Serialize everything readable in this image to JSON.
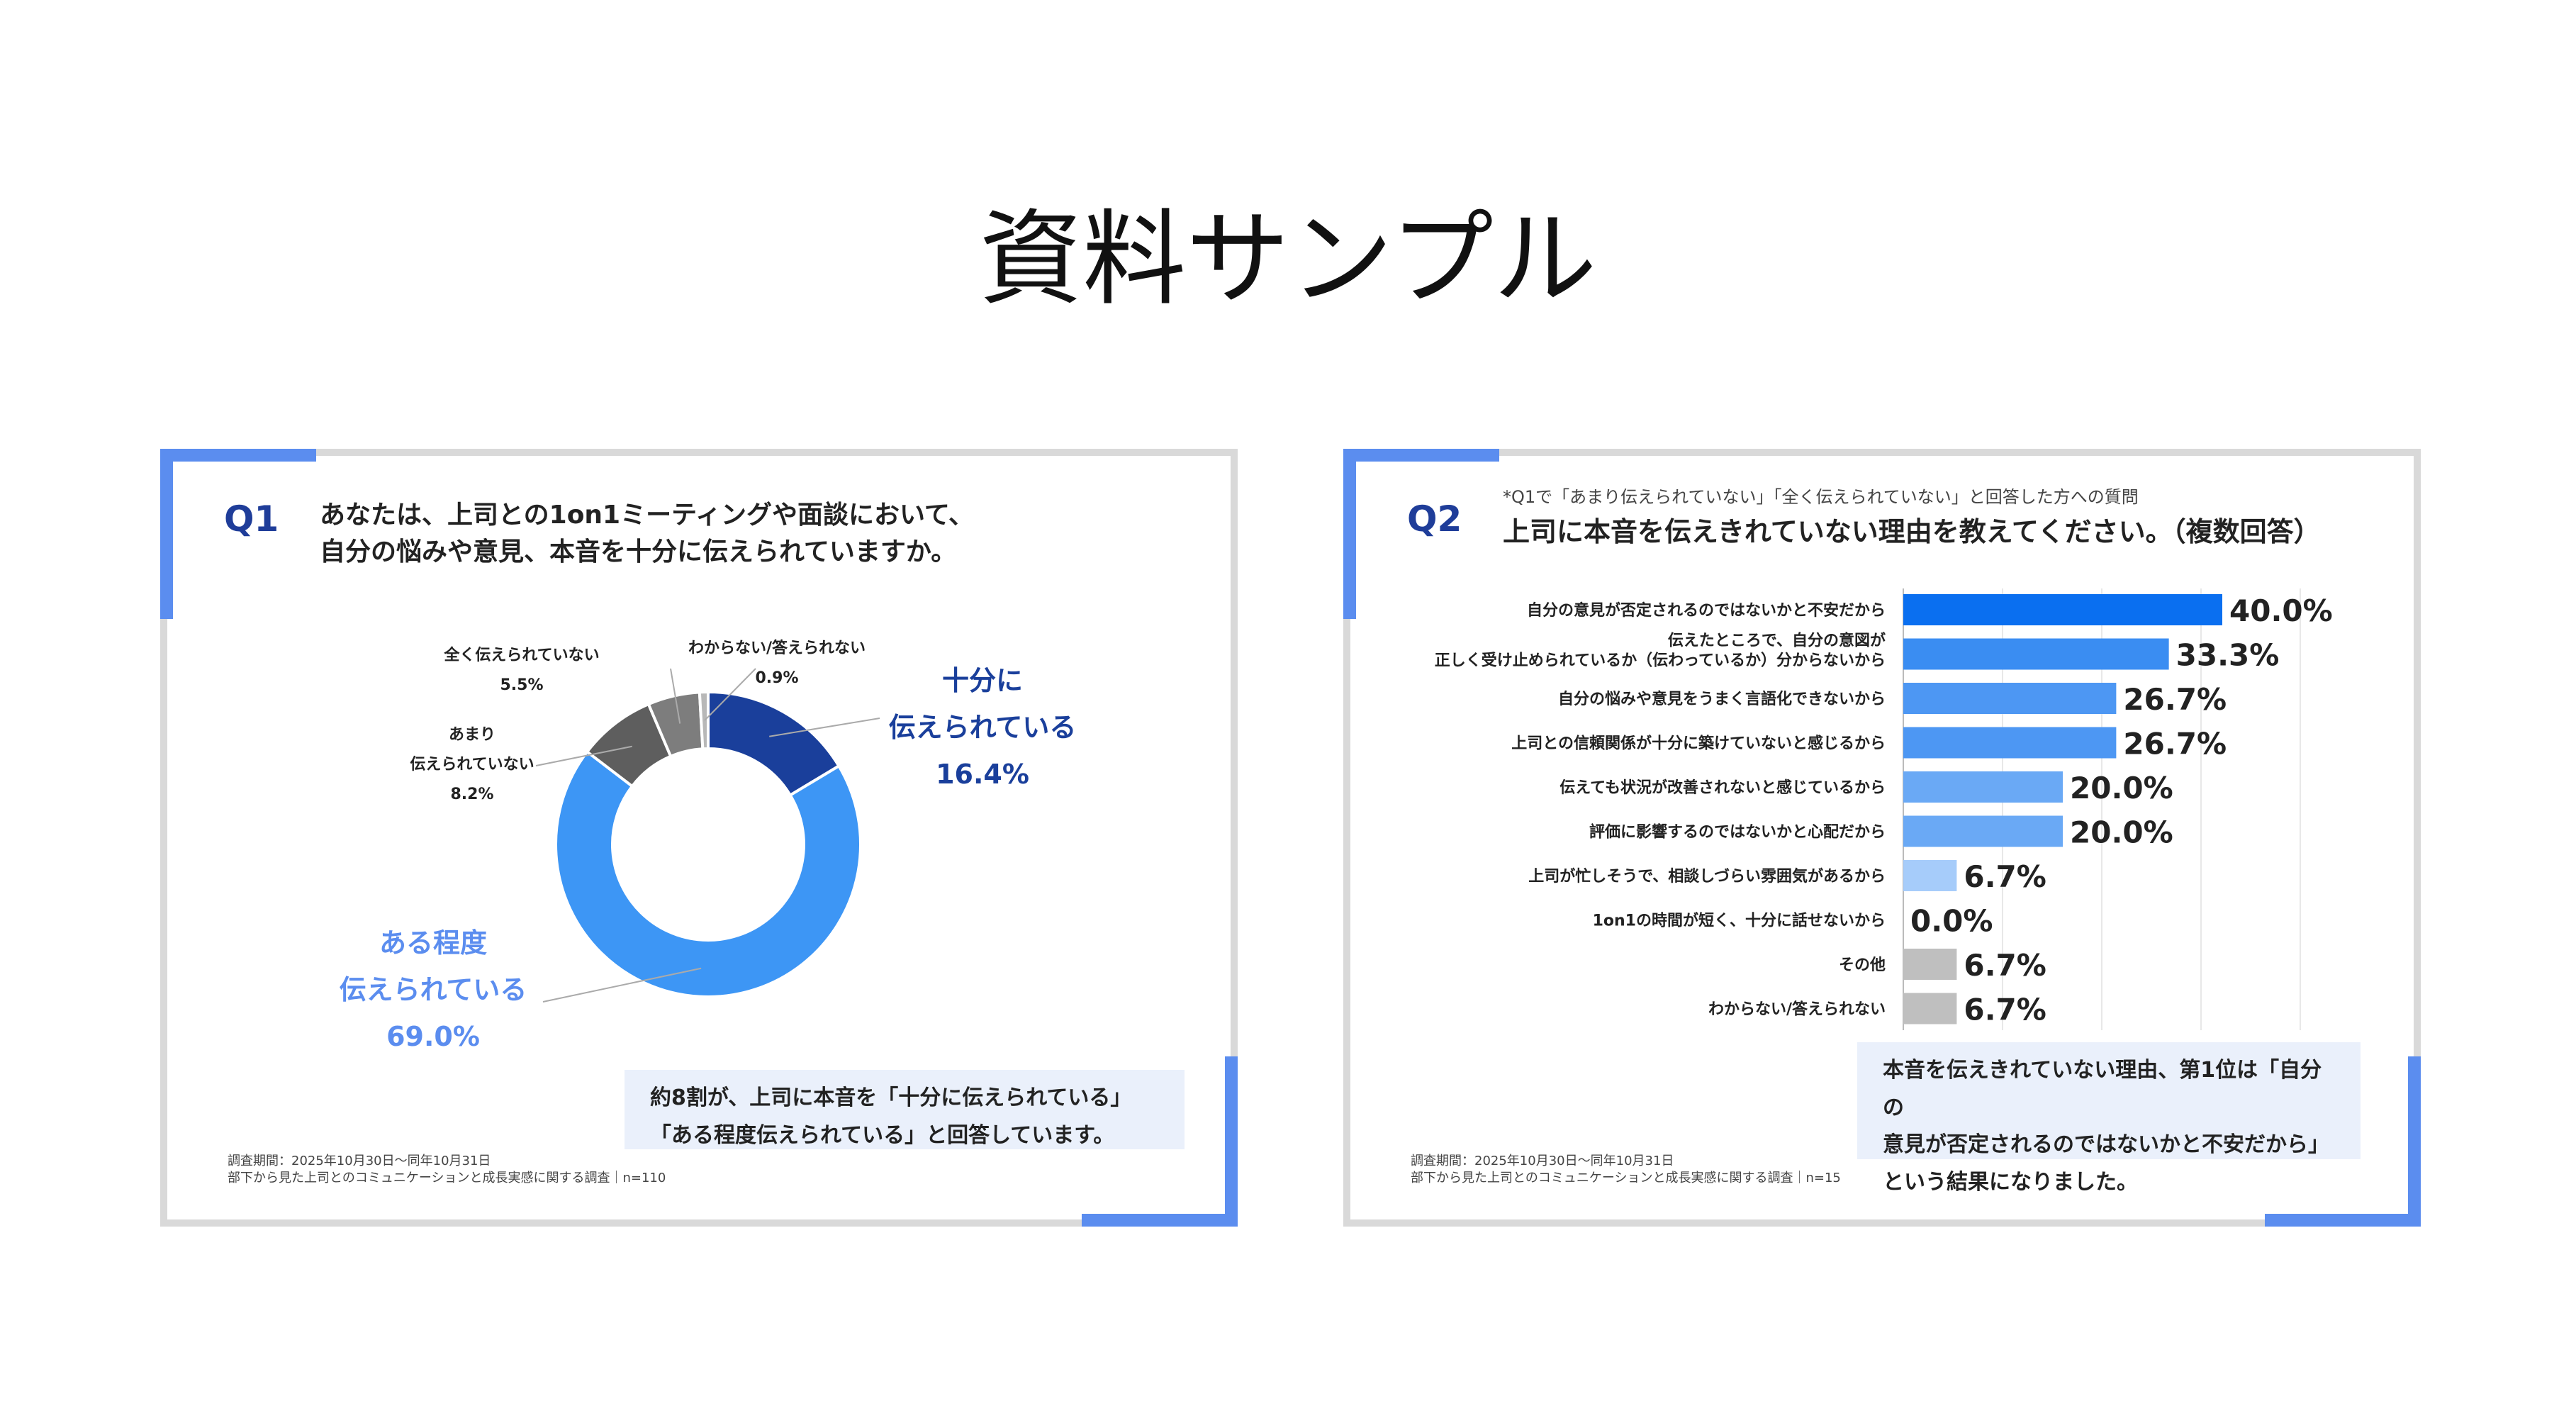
{
  "page": {
    "title": "資料サンプル"
  },
  "q1": {
    "number": "Q1",
    "question_line1": "あなたは、上司との1on1ミーティングや面談において、",
    "question_line2": "自分の悩みや意見、本音を十分に伝えられていますか。",
    "summary": "約8割が、上司に本音を「十分に伝えられている」「ある程度伝えられている」と回答しています。",
    "footnote_line1": "調査期間：2025年10月30日〜同年10月31日",
    "footnote_line2": "部下から見た上司とのコミュニケーションと成長実感に関する調査｜n=110"
  },
  "q2": {
    "number": "Q2",
    "note": "*Q1で「あまり伝えられていない」「全く伝えられていない」と回答した方への質問",
    "question": "上司に本音を伝えきれていない理由を教えてください。（複数回答）",
    "summary_line1": "本音を伝えきれていない理由、第1位は「自分の",
    "summary_line2": "意見が否定されるのではないかと不安だから」",
    "summary_line3": "という結果になりました。",
    "footnote_line1": "調査期間：2025年10月30日〜同年10月31日",
    "footnote_line2": "部下から見た上司とのコミュニケーションと成長実感に関する調査｜n=15"
  },
  "chart_data": [
    {
      "type": "pie",
      "donut": true,
      "title": "",
      "slices": [
        {
          "label_lines": [
            "十分に",
            "伝えられている"
          ],
          "value": 16.4,
          "value_label": "16.4%",
          "color": "#1a3f9b",
          "label_color": "#1a3f9b",
          "label_size": "large"
        },
        {
          "label_lines": [
            "ある程度",
            "伝えられている"
          ],
          "value": 69.0,
          "value_label": "69.0%",
          "color": "#3d96f5",
          "label_color": "#5b8def",
          "label_size": "large"
        },
        {
          "label_lines": [
            "あまり",
            "伝えられていない"
          ],
          "value": 8.2,
          "value_label": "8.2%",
          "color": "#5e5e5e",
          "label_color": "#222222",
          "label_size": "small"
        },
        {
          "label_lines": [
            "全く伝えられていない"
          ],
          "value": 5.5,
          "value_label": "5.5%",
          "color": "#7d7d7d",
          "label_color": "#222222",
          "label_size": "small"
        },
        {
          "label_lines": [
            "わからない/答えられない"
          ],
          "value": 0.9,
          "value_label": "0.9%",
          "color": "#b8b8b8",
          "label_color": "#222222",
          "label_size": "small"
        }
      ]
    },
    {
      "type": "bar",
      "orientation": "horizontal",
      "title": "",
      "xlim": [
        0,
        40
      ],
      "grid": true,
      "categories": [
        [
          "自分の意見が否定されるのではないかと不安だから"
        ],
        [
          "伝えたところで、自分の意図が",
          "正しく受け止められているか（伝わっているか）分からないから"
        ],
        [
          "自分の悩みや意見をうまく言語化できないから"
        ],
        [
          "上司との信頼関係が十分に築けていないと感じるから"
        ],
        [
          "伝えても状況が改善されないと感じているから"
        ],
        [
          "評価に影響するのではないかと心配だから"
        ],
        [
          "上司が忙しそうで、相談しづらい雰囲気があるから"
        ],
        [
          "1on1の時間が短く、十分に話せないから"
        ],
        [
          "その他"
        ],
        [
          "わからない/答えられない"
        ]
      ],
      "values": [
        40.0,
        33.3,
        26.7,
        26.7,
        20.0,
        20.0,
        6.7,
        0.0,
        6.7,
        6.7
      ],
      "value_labels": [
        "40.0%",
        "33.3%",
        "26.7%",
        "26.7%",
        "20.0%",
        "20.0%",
        "6.7%",
        "0.0%",
        "6.7%",
        "6.7%"
      ],
      "colors": [
        "#0a6ff0",
        "#3a8df2",
        "#4d97f3",
        "#4d97f3",
        "#6aa9f5",
        "#6aa9f5",
        "#a6ccfa",
        "#a6ccfa",
        "#bfbfbf",
        "#bfbfbf"
      ]
    }
  ]
}
